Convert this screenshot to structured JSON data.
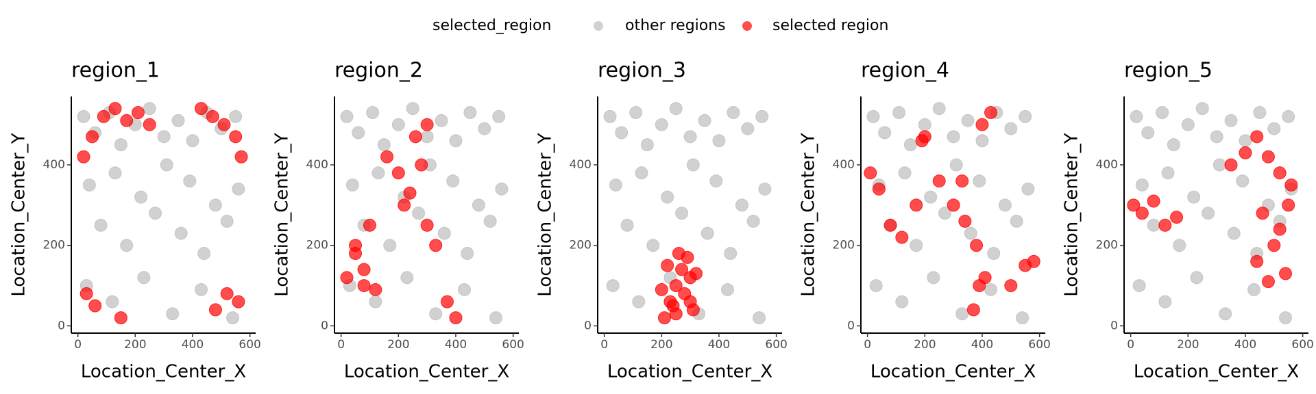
{
  "legend": {
    "title": "selected_region"
  },
  "chart_data": [
    {
      "type": "scatter",
      "title": "region_1",
      "x_label": "Location_Center_X",
      "y_label": "Location_Center_Y",
      "xlim": [
        -23,
        620
      ],
      "ylim": [
        -18,
        570
      ],
      "xticks": [
        0,
        200,
        400,
        600
      ],
      "yticks": [
        0,
        200,
        400
      ],
      "series": [
        {
          "name": "other regions",
          "color": "#bebebe",
          "x": [
            20,
            60,
            110,
            150,
            200,
            250,
            300,
            350,
            400,
            450,
            500,
            550,
            40,
            130,
            220,
            310,
            390,
            480,
            560,
            80,
            170,
            270,
            360,
            440,
            520,
            30,
            120,
            230,
            330,
            430,
            540
          ],
          "values": [
            520,
            480,
            530,
            450,
            500,
            540,
            470,
            510,
            460,
            530,
            490,
            520,
            350,
            380,
            320,
            400,
            360,
            300,
            340,
            250,
            200,
            280,
            230,
            180,
            260,
            100,
            60,
            120,
            30,
            90,
            20
          ]
        },
        {
          "name": "selected region",
          "color": "#ff0000",
          "x": [
            20,
            50,
            90,
            130,
            170,
            210,
            250,
            430,
            470,
            510,
            550,
            570,
            30,
            60,
            150,
            480,
            520,
            560
          ],
          "values": [
            420,
            470,
            520,
            540,
            510,
            530,
            500,
            540,
            520,
            500,
            470,
            420,
            80,
            50,
            20,
            40,
            80,
            60
          ]
        }
      ]
    },
    {
      "type": "scatter",
      "title": "region_2",
      "x_label": "Location_Center_X",
      "y_label": "Location_Center_Y",
      "xlim": [
        -23,
        620
      ],
      "ylim": [
        -18,
        570
      ],
      "xticks": [
        0,
        200,
        400,
        600
      ],
      "yticks": [
        0,
        200,
        400
      ],
      "series": [
        {
          "name": "other regions",
          "color": "#bebebe",
          "x": [
            20,
            60,
            110,
            150,
            200,
            250,
            300,
            350,
            400,
            450,
            500,
            550,
            40,
            130,
            220,
            310,
            390,
            480,
            560,
            80,
            170,
            270,
            360,
            440,
            520,
            30,
            120,
            230,
            330,
            430,
            540
          ],
          "values": [
            520,
            480,
            530,
            450,
            500,
            540,
            470,
            510,
            460,
            530,
            490,
            520,
            350,
            380,
            320,
            400,
            360,
            300,
            340,
            250,
            200,
            280,
            230,
            180,
            260,
            100,
            60,
            120,
            30,
            90,
            20
          ]
        },
        {
          "name": "selected region",
          "color": "#ff0000",
          "x": [
            20,
            50,
            80,
            120,
            160,
            200,
            240,
            280,
            300,
            260,
            220,
            100,
            50,
            80,
            370,
            400,
            330,
            300
          ],
          "values": [
            120,
            180,
            140,
            90,
            420,
            380,
            330,
            400,
            500,
            470,
            300,
            250,
            200,
            100,
            60,
            20,
            200,
            250
          ]
        }
      ]
    },
    {
      "type": "scatter",
      "title": "region_3",
      "x_label": "Location_Center_X",
      "y_label": "Location_Center_Y",
      "xlim": [
        -23,
        620
      ],
      "ylim": [
        -18,
        570
      ],
      "xticks": [
        0,
        200,
        400,
        600
      ],
      "yticks": [
        0,
        200,
        400
      ],
      "series": [
        {
          "name": "other regions",
          "color": "#bebebe",
          "x": [
            20,
            60,
            110,
            150,
            200,
            250,
            300,
            350,
            400,
            450,
            500,
            550,
            40,
            130,
            220,
            310,
            390,
            480,
            560,
            80,
            170,
            270,
            360,
            440,
            520,
            30,
            120,
            230,
            330,
            430,
            540
          ],
          "values": [
            520,
            480,
            530,
            450,
            500,
            540,
            470,
            510,
            460,
            530,
            490,
            520,
            350,
            380,
            320,
            400,
            360,
            300,
            340,
            250,
            200,
            280,
            230,
            180,
            260,
            100,
            60,
            120,
            30,
            90,
            20
          ]
        },
        {
          "name": "selected region",
          "color": "#ff0000",
          "x": [
            210,
            230,
            250,
            270,
            290,
            310,
            220,
            260,
            300,
            240,
            280,
            320,
            200,
            250,
            300
          ],
          "values": [
            20,
            60,
            100,
            140,
            170,
            40,
            150,
            180,
            120,
            50,
            80,
            130,
            90,
            30,
            60
          ]
        }
      ]
    },
    {
      "type": "scatter",
      "title": "region_4",
      "x_label": "Location_Center_X",
      "y_label": "Location_Center_Y",
      "xlim": [
        -23,
        620
      ],
      "ylim": [
        -18,
        570
      ],
      "xticks": [
        0,
        200,
        400,
        600
      ],
      "yticks": [
        0,
        200,
        400
      ],
      "series": [
        {
          "name": "other regions",
          "color": "#bebebe",
          "x": [
            20,
            60,
            110,
            150,
            200,
            250,
            300,
            350,
            400,
            450,
            500,
            550,
            40,
            130,
            220,
            310,
            390,
            480,
            560,
            80,
            170,
            270,
            360,
            440,
            520,
            30,
            120,
            230,
            330,
            430,
            540
          ],
          "values": [
            520,
            480,
            530,
            450,
            500,
            540,
            470,
            510,
            460,
            530,
            490,
            520,
            350,
            380,
            320,
            400,
            360,
            300,
            340,
            250,
            200,
            280,
            230,
            180,
            260,
            100,
            60,
            120,
            30,
            90,
            20
          ]
        },
        {
          "name": "selected region",
          "color": "#ff0000",
          "x": [
            10,
            40,
            80,
            120,
            170,
            200,
            250,
            300,
            340,
            380,
            400,
            430,
            390,
            370,
            410,
            500,
            550,
            580,
            190,
            330
          ],
          "values": [
            380,
            340,
            250,
            220,
            300,
            470,
            360,
            300,
            260,
            200,
            500,
            530,
            100,
            40,
            120,
            100,
            150,
            160,
            460,
            360
          ]
        }
      ]
    },
    {
      "type": "scatter",
      "title": "region_5",
      "x_label": "Location_Center_X",
      "y_label": "Location_Center_Y",
      "xlim": [
        -23,
        620
      ],
      "ylim": [
        -18,
        570
      ],
      "xticks": [
        0,
        200,
        400,
        600
      ],
      "yticks": [
        0,
        200,
        400
      ],
      "series": [
        {
          "name": "other regions",
          "color": "#bebebe",
          "x": [
            20,
            60,
            110,
            150,
            200,
            250,
            300,
            350,
            400,
            450,
            500,
            550,
            40,
            130,
            220,
            310,
            390,
            480,
            560,
            80,
            170,
            270,
            360,
            440,
            520,
            30,
            120,
            230,
            330,
            430,
            540
          ],
          "values": [
            520,
            480,
            530,
            450,
            500,
            540,
            470,
            510,
            460,
            530,
            490,
            520,
            350,
            380,
            320,
            400,
            360,
            300,
            340,
            250,
            200,
            280,
            230,
            180,
            260,
            100,
            60,
            120,
            30,
            90,
            20
          ]
        },
        {
          "name": "selected region",
          "color": "#ff0000",
          "x": [
            10,
            40,
            80,
            120,
            160,
            350,
            400,
            440,
            480,
            520,
            560,
            460,
            500,
            540,
            440,
            480,
            520,
            550
          ],
          "values": [
            300,
            280,
            310,
            250,
            270,
            400,
            430,
            470,
            420,
            380,
            350,
            280,
            200,
            130,
            160,
            110,
            240,
            300
          ]
        }
      ]
    }
  ]
}
